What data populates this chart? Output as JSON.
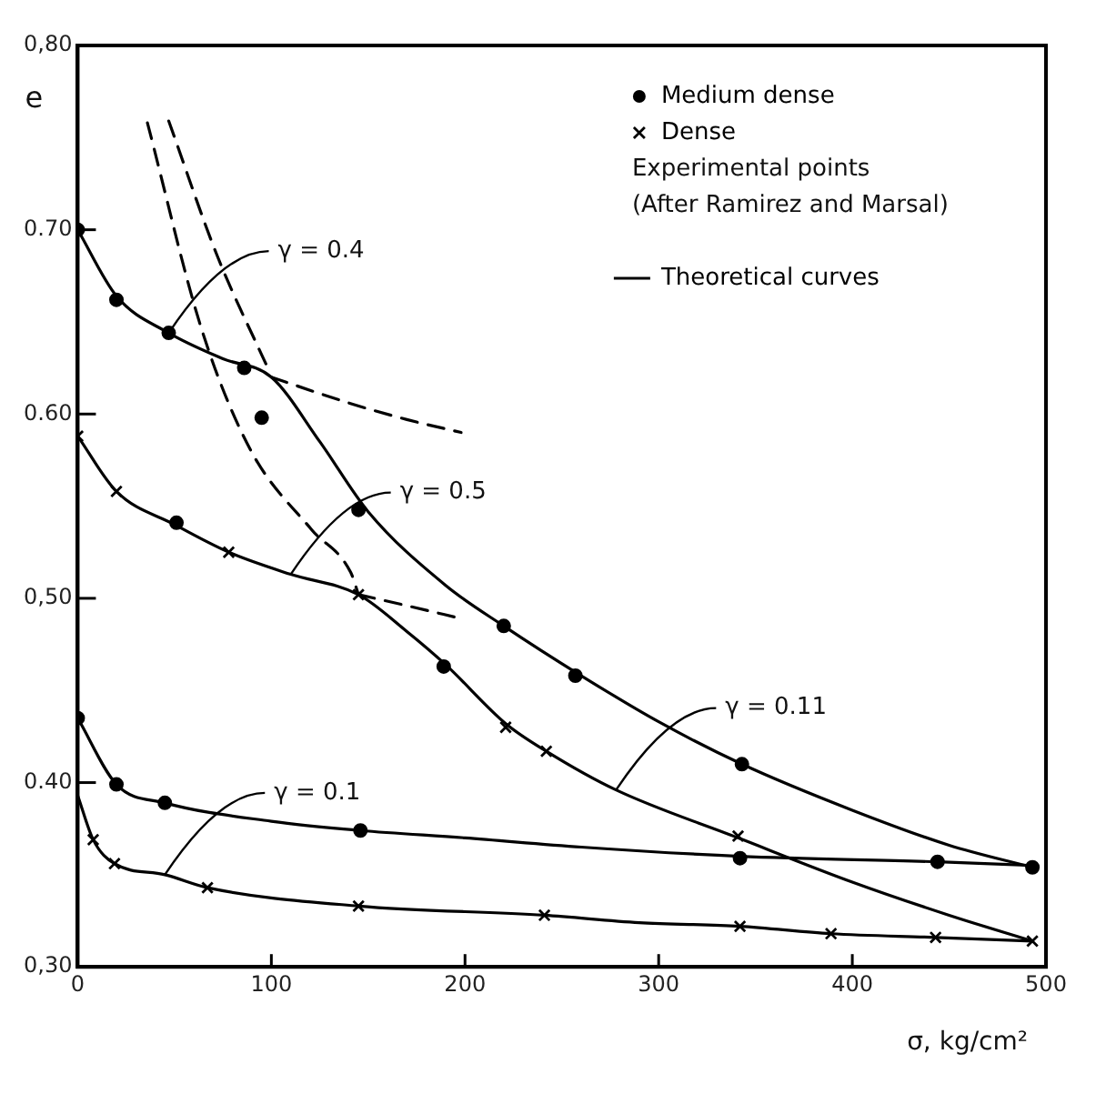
{
  "chart_data": {
    "type": "line",
    "xlabel": "σ, kg/cm²",
    "ylabel": "e",
    "xlim": [
      0,
      500
    ],
    "xticks": [
      0,
      100,
      200,
      300,
      400,
      500
    ],
    "ylim": [
      0.3,
      0.8
    ],
    "yticks": [
      {
        "value": 0.3,
        "label": "0,30"
      },
      {
        "value": 0.4,
        "label": "0.40"
      },
      {
        "value": 0.5,
        "label": "0,50"
      },
      {
        "value": 0.6,
        "label": "0.60"
      },
      {
        "value": 0.7,
        "label": "0.70"
      },
      {
        "value": 0.8,
        "label": "0,80"
      }
    ],
    "grid": false,
    "legend": "top right",
    "annotations": [
      "Experimental points",
      "(After Ramirez and Marsal)",
      {
        "text": "γ = 0.4",
        "x": 47,
        "y": 0.644
      },
      {
        "text": "γ = 0.5",
        "x": 110,
        "y": 0.513
      },
      {
        "text": "γ = 0.11",
        "x": 278,
        "y": 0.396
      },
      {
        "text": "γ = 0.1",
        "x": 45,
        "y": 0.35
      }
    ],
    "series": [
      {
        "name": "Medium dense",
        "type": "scatter",
        "marker": "circle",
        "color": "#000000",
        "x": [
          0,
          20,
          47,
          86,
          95,
          145,
          189,
          220,
          257,
          343,
          0,
          20,
          45,
          146,
          342,
          444,
          493,
          51
        ],
        "values": [
          0.7,
          0.662,
          0.644,
          0.625,
          0.598,
          0.548,
          0.463,
          0.485,
          0.458,
          0.41,
          0.435,
          0.399,
          0.389,
          0.374,
          0.359,
          0.357,
          0.354,
          0.541
        ]
      },
      {
        "name": "Dense",
        "type": "scatter",
        "marker": "cross",
        "color": "#000000",
        "x": [
          0,
          20,
          78,
          145,
          221,
          242,
          341,
          493,
          8,
          19,
          67,
          145,
          241,
          342,
          389,
          443
        ],
        "values": [
          0.588,
          0.558,
          0.525,
          0.502,
          0.43,
          0.417,
          0.371,
          0.314,
          0.369,
          0.356,
          0.343,
          0.333,
          0.328,
          0.322,
          0.318,
          0.316
        ]
      },
      {
        "name": "Theoretical curves",
        "marker": "none",
        "line_style": "solid",
        "color": "#000000",
        "x": [
          0,
          20,
          47,
          75,
          100,
          125,
          150,
          190,
          220,
          260,
          300,
          343,
          400,
          450,
          493
        ],
        "values": [
          0.7,
          0.664,
          0.644,
          0.63,
          0.62,
          0.585,
          0.547,
          0.507,
          0.485,
          0.458,
          0.433,
          0.41,
          0.385,
          0.366,
          0.354
        ]
      },
      {
        "marker": "none",
        "line_style": "solid",
        "color": "#000000",
        "x": [
          0,
          20,
          50,
          78,
          110,
          145,
          170,
          190,
          221,
          242,
          278,
          341,
          400,
          450,
          493
        ],
        "values": [
          0.588,
          0.558,
          0.54,
          0.525,
          0.513,
          0.502,
          0.482,
          0.464,
          0.432,
          0.417,
          0.396,
          0.37,
          0.346,
          0.328,
          0.314
        ]
      },
      {
        "marker": "none",
        "line_style": "solid",
        "color": "#000000",
        "x": [
          0,
          20,
          45,
          100,
          146,
          200,
          260,
          342,
          444,
          493
        ],
        "values": [
          0.435,
          0.399,
          0.389,
          0.379,
          0.374,
          0.37,
          0.365,
          0.36,
          0.357,
          0.355
        ]
      },
      {
        "marker": "none",
        "line_style": "solid",
        "color": "#000000",
        "x": [
          0,
          8,
          19,
          45,
          67,
          145,
          241,
          290,
          342,
          389,
          443,
          493
        ],
        "values": [
          0.393,
          0.369,
          0.356,
          0.35,
          0.343,
          0.333,
          0.328,
          0.324,
          0.322,
          0.318,
          0.316,
          0.314
        ]
      },
      {
        "marker": "none",
        "line_style": "dashed",
        "color": "#000000",
        "x": [
          100,
          140,
          170,
          198
        ],
        "values": [
          0.62,
          0.606,
          0.597,
          0.59
        ]
      },
      {
        "marker": "none",
        "line_style": "dashed",
        "color": "#000000",
        "x": [
          47,
          72,
          99
        ],
        "values": [
          0.759,
          0.686,
          0.623
        ]
      },
      {
        "marker": "none",
        "line_style": "dashed",
        "color": "#000000",
        "x": [
          36,
          64,
          89,
          121,
          141,
          145
        ],
        "values": [
          0.758,
          0.646,
          0.581,
          0.537,
          0.514,
          0.502
        ]
      },
      {
        "marker": "none",
        "line_style": "dashed",
        "color": "#000000",
        "x": [
          145,
          170,
          198
        ],
        "values": [
          0.502,
          0.496,
          0.489
        ]
      }
    ]
  }
}
